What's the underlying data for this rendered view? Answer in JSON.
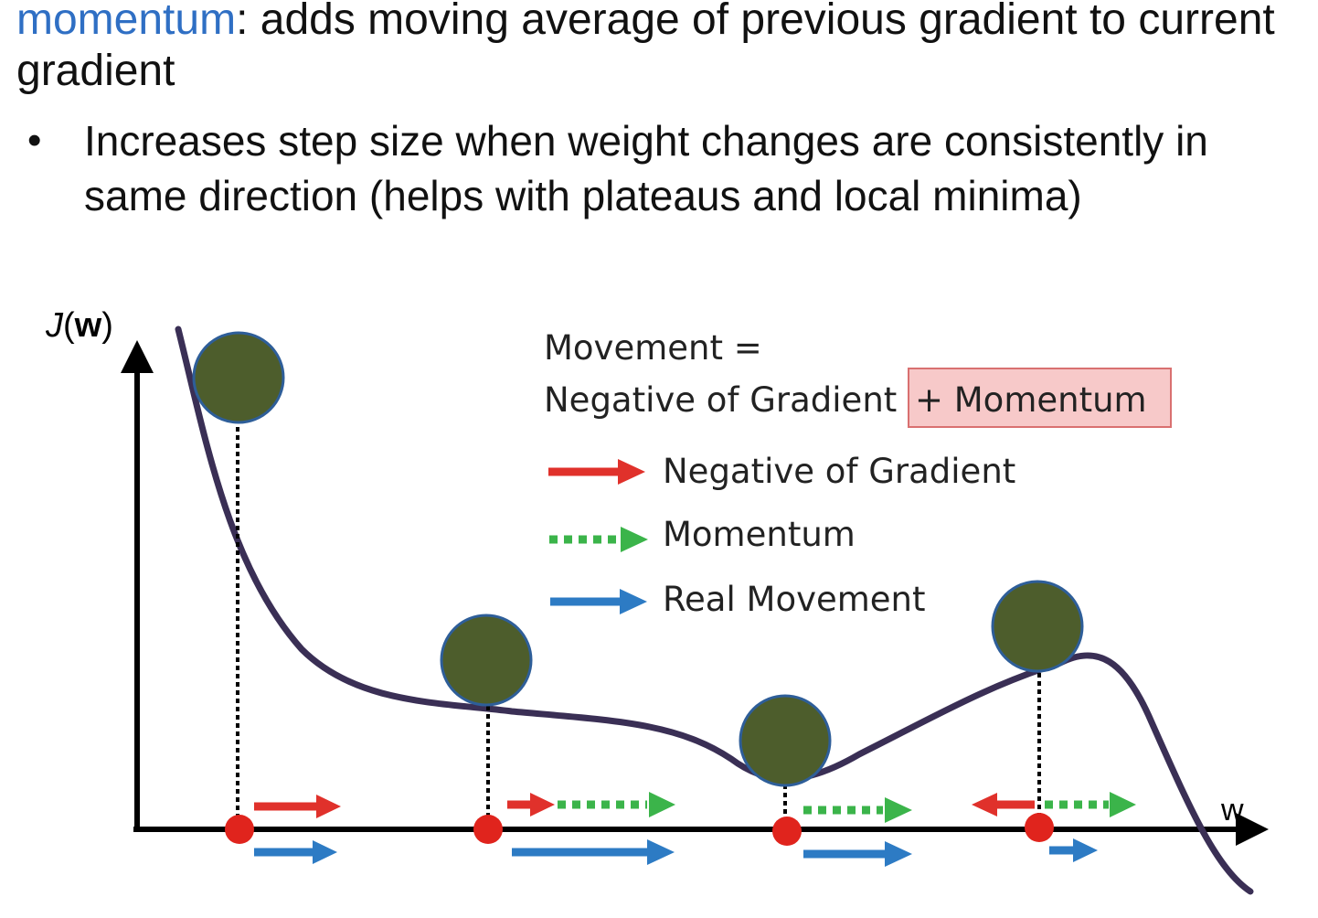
{
  "slide": {
    "keyword": "momentum",
    "heading_rest": ": adds moving average of previous gradient to current gradient",
    "bullet_marker": "•",
    "bullet": "Increases step size when weight changes are consistently in same direction (helps with plateaus and local minima)"
  },
  "diagram": {
    "y_axis_label_fn": "J",
    "y_axis_label_open": "(",
    "y_axis_label_var": "w",
    "y_axis_label_close": ")",
    "x_axis_label": "w",
    "formula_line1": "Movement =",
    "formula_line2": "Negative of Gradient",
    "formula_highlight": "+ Momentum",
    "legend": [
      {
        "label": "Negative of Gradient",
        "color": "#e0312b",
        "style": "solid"
      },
      {
        "label": "Momentum",
        "color": "#3bb44a",
        "style": "dotted"
      },
      {
        "label": "Real Movement",
        "color": "#2d7bc4",
        "style": "solid"
      }
    ],
    "colors": {
      "curve": "#3a2f55",
      "ball": "#4d5d2c",
      "ball_outline": "#2e5e99",
      "point": "#e0241d",
      "highlight_fill": "#f7c9c9",
      "highlight_border": "#d97070"
    }
  }
}
